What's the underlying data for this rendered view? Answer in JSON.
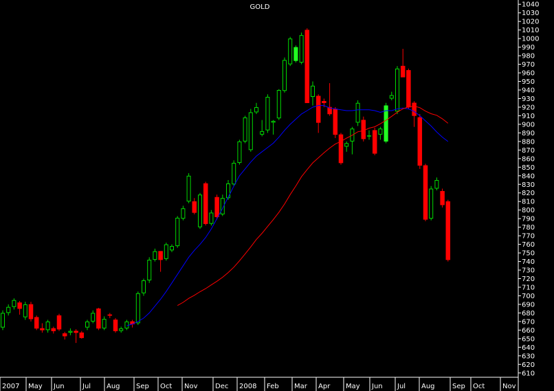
{
  "chart_data": {
    "type": "candlestick",
    "title": "GOLD",
    "xlabel": "",
    "ylabel": "",
    "ylim": [
      605,
      1045
    ],
    "y_ticks": [
      610,
      620,
      630,
      640,
      650,
      660,
      670,
      680,
      690,
      700,
      710,
      720,
      730,
      740,
      750,
      760,
      770,
      780,
      790,
      800,
      810,
      820,
      830,
      840,
      850,
      860,
      870,
      880,
      890,
      900,
      910,
      920,
      930,
      940,
      950,
      960,
      970,
      980,
      990,
      1000,
      1010,
      1020,
      1030,
      1040
    ],
    "x_labels": [
      "2007",
      "May",
      "Jun",
      "Jul",
      "Aug",
      "Sep",
      "Oct",
      "Nov",
      "Dec",
      "2008",
      "Feb",
      "Mar",
      "Apr",
      "May",
      "Jun",
      "Jul",
      "Aug",
      "Sep",
      "Oct",
      "Nov"
    ],
    "grid": false,
    "colors": {
      "background": "#000000",
      "up_candle": "#00dd00",
      "up_candle_highlight": "#22ff22",
      "down_candle": "#ff0000",
      "ma_short": "#0000ff",
      "ma_long": "#ff0000",
      "axis": "#ffffff"
    },
    "candles": [
      {
        "o": 663,
        "h": 683,
        "l": 660,
        "c": 680,
        "dir": "up"
      },
      {
        "o": 680,
        "h": 690,
        "l": 677,
        "c": 687,
        "dir": "up"
      },
      {
        "o": 687,
        "h": 697,
        "l": 684,
        "c": 695,
        "dir": "up"
      },
      {
        "o": 692,
        "h": 694,
        "l": 678,
        "c": 685,
        "dir": "down"
      },
      {
        "o": 675,
        "h": 693,
        "l": 672,
        "c": 690,
        "dir": "up"
      },
      {
        "o": 690,
        "h": 693,
        "l": 670,
        "c": 673,
        "dir": "down"
      },
      {
        "o": 675,
        "h": 677,
        "l": 660,
        "c": 662,
        "dir": "down"
      },
      {
        "o": 662,
        "h": 668,
        "l": 657,
        "c": 660,
        "dir": "down"
      },
      {
        "o": 660,
        "h": 672,
        "l": 657,
        "c": 670,
        "dir": "up"
      },
      {
        "o": 662,
        "h": 664,
        "l": 656,
        "c": 659,
        "dir": "down"
      },
      {
        "o": 677,
        "h": 679,
        "l": 659,
        "c": 661,
        "dir": "down"
      },
      {
        "o": 656,
        "h": 658,
        "l": 649,
        "c": 653,
        "dir": "down"
      },
      {
        "o": 657,
        "h": 662,
        "l": 654,
        "c": 659,
        "dir": "up"
      },
      {
        "o": 659,
        "h": 661,
        "l": 645,
        "c": 657,
        "dir": "down"
      },
      {
        "o": 657,
        "h": 659,
        "l": 650,
        "c": 651,
        "dir": "down"
      },
      {
        "o": 663,
        "h": 672,
        "l": 660,
        "c": 670,
        "dir": "up"
      },
      {
        "o": 670,
        "h": 683,
        "l": 668,
        "c": 680,
        "dir": "up"
      },
      {
        "o": 685,
        "h": 686,
        "l": 660,
        "c": 662,
        "dir": "down"
      },
      {
        "o": 662,
        "h": 676,
        "l": 660,
        "c": 673,
        "dir": "up"
      },
      {
        "o": 678,
        "h": 680,
        "l": 674,
        "c": 677,
        "dir": "down"
      },
      {
        "o": 672,
        "h": 674,
        "l": 657,
        "c": 659,
        "dir": "down"
      },
      {
        "o": 659,
        "h": 664,
        "l": 657,
        "c": 662,
        "dir": "up"
      },
      {
        "o": 662,
        "h": 672,
        "l": 660,
        "c": 670,
        "dir": "up"
      },
      {
        "o": 670,
        "h": 672,
        "l": 663,
        "c": 667,
        "dir": "down"
      },
      {
        "o": 668,
        "h": 705,
        "l": 666,
        "c": 703,
        "dir": "up"
      },
      {
        "o": 703,
        "h": 720,
        "l": 700,
        "c": 718,
        "dir": "up"
      },
      {
        "o": 718,
        "h": 745,
        "l": 715,
        "c": 742,
        "dir": "up"
      },
      {
        "o": 742,
        "h": 755,
        "l": 740,
        "c": 752,
        "dir": "up"
      },
      {
        "o": 752,
        "h": 750,
        "l": 728,
        "c": 742,
        "dir": "down"
      },
      {
        "o": 743,
        "h": 762,
        "l": 741,
        "c": 760,
        "dir": "up"
      },
      {
        "o": 753,
        "h": 760,
        "l": 751,
        "c": 758,
        "dir": "up"
      },
      {
        "o": 758,
        "h": 793,
        "l": 756,
        "c": 791,
        "dir": "up"
      },
      {
        "o": 790,
        "h": 805,
        "l": 788,
        "c": 802,
        "dir": "up"
      },
      {
        "o": 810,
        "h": 843,
        "l": 808,
        "c": 840,
        "dir": "up"
      },
      {
        "o": 810,
        "h": 814,
        "l": 795,
        "c": 797,
        "dir": "down"
      },
      {
        "o": 780,
        "h": 820,
        "l": 778,
        "c": 818,
        "dir": "up"
      },
      {
        "o": 831,
        "h": 833,
        "l": 782,
        "c": 784,
        "dir": "down"
      },
      {
        "o": 784,
        "h": 800,
        "l": 782,
        "c": 797,
        "dir": "up"
      },
      {
        "o": 815,
        "h": 818,
        "l": 789,
        "c": 792,
        "dir": "down"
      },
      {
        "o": 795,
        "h": 818,
        "l": 793,
        "c": 814,
        "dir": "up"
      },
      {
        "o": 814,
        "h": 835,
        "l": 812,
        "c": 831,
        "dir": "up"
      },
      {
        "o": 830,
        "h": 858,
        "l": 828,
        "c": 855,
        "dir": "up"
      },
      {
        "o": 855,
        "h": 882,
        "l": 853,
        "c": 880,
        "dir": "up"
      },
      {
        "o": 880,
        "h": 910,
        "l": 878,
        "c": 908,
        "dir": "up"
      },
      {
        "o": 870,
        "h": 918,
        "l": 868,
        "c": 914,
        "dir": "up"
      },
      {
        "o": 914,
        "h": 925,
        "l": 912,
        "c": 920,
        "dir": "up"
      },
      {
        "o": 888,
        "h": 905,
        "l": 886,
        "c": 892,
        "dir": "up"
      },
      {
        "o": 893,
        "h": 935,
        "l": 890,
        "c": 932,
        "dir": "up"
      },
      {
        "o": 902,
        "h": 905,
        "l": 888,
        "c": 904,
        "dir": "up"
      },
      {
        "o": 907,
        "h": 941,
        "l": 905,
        "c": 940,
        "dir": "up"
      },
      {
        "o": 939,
        "h": 978,
        "l": 937,
        "c": 975,
        "dir": "up"
      },
      {
        "o": 970,
        "h": 1002,
        "l": 968,
        "c": 1000,
        "dir": "up"
      },
      {
        "o": 990,
        "h": 992,
        "l": 972,
        "c": 974,
        "dir": "up"
      },
      {
        "o": 972,
        "h": 1007,
        "l": 970,
        "c": 1004,
        "dir": "up"
      },
      {
        "o": 1010,
        "h": 1012,
        "l": 927,
        "c": 925,
        "dir": "down"
      },
      {
        "o": 932,
        "h": 950,
        "l": 922,
        "c": 945,
        "dir": "up"
      },
      {
        "o": 933,
        "h": 935,
        "l": 890,
        "c": 902,
        "dir": "down"
      },
      {
        "o": 927,
        "h": 930,
        "l": 920,
        "c": 925,
        "dir": "down"
      },
      {
        "o": 912,
        "h": 948,
        "l": 910,
        "c": 920,
        "dir": "down"
      },
      {
        "o": 918,
        "h": 920,
        "l": 884,
        "c": 888,
        "dir": "down"
      },
      {
        "o": 888,
        "h": 890,
        "l": 853,
        "c": 855,
        "dir": "down"
      },
      {
        "o": 874,
        "h": 880,
        "l": 868,
        "c": 878,
        "dir": "up"
      },
      {
        "o": 880,
        "h": 897,
        "l": 865,
        "c": 895,
        "dir": "up"
      },
      {
        "o": 902,
        "h": 928,
        "l": 898,
        "c": 925,
        "dir": "up"
      },
      {
        "o": 905,
        "h": 909,
        "l": 880,
        "c": 883,
        "dir": "down"
      },
      {
        "o": 886,
        "h": 893,
        "l": 882,
        "c": 887,
        "dir": "up"
      },
      {
        "o": 893,
        "h": 896,
        "l": 864,
        "c": 866,
        "dir": "down"
      },
      {
        "o": 888,
        "h": 897,
        "l": 882,
        "c": 895,
        "dir": "up"
      },
      {
        "o": 880,
        "h": 925,
        "l": 878,
        "c": 922,
        "dir": "up"
      },
      {
        "o": 930,
        "h": 938,
        "l": 928,
        "c": 934,
        "dir": "up"
      },
      {
        "o": 915,
        "h": 968,
        "l": 912,
        "c": 965,
        "dir": "up"
      },
      {
        "o": 968,
        "h": 988,
        "l": 955,
        "c": 955,
        "dir": "down"
      },
      {
        "o": 963,
        "h": 965,
        "l": 918,
        "c": 920,
        "dir": "down"
      },
      {
        "o": 925,
        "h": 927,
        "l": 897,
        "c": 910,
        "dir": "down"
      },
      {
        "o": 908,
        "h": 912,
        "l": 848,
        "c": 852,
        "dir": "down"
      },
      {
        "o": 852,
        "h": 854,
        "l": 787,
        "c": 789,
        "dir": "down"
      },
      {
        "o": 790,
        "h": 828,
        "l": 788,
        "c": 825,
        "dir": "up"
      },
      {
        "o": 825,
        "h": 838,
        "l": 823,
        "c": 835,
        "dir": "up"
      },
      {
        "o": 822,
        "h": 825,
        "l": 803,
        "c": 806,
        "dir": "down"
      },
      {
        "o": 810,
        "h": 812,
        "l": 740,
        "c": 742,
        "dir": "down"
      }
    ],
    "series": [
      {
        "values": [
          null,
          null,
          null,
          null,
          null,
          null,
          null,
          null,
          null,
          null,
          null,
          null,
          null,
          null,
          null,
          null,
          null,
          null,
          null,
          null,
          null,
          null,
          665,
          667,
          670,
          674,
          680,
          688,
          696,
          705,
          715,
          725,
          735,
          745,
          753,
          760,
          768,
          778,
          790,
          802,
          815,
          828,
          840,
          848,
          856,
          863,
          868,
          873,
          878,
          885,
          893,
          900,
          906,
          912,
          916,
          920,
          922,
          922,
          919,
          918,
          917,
          916,
          916,
          917,
          917,
          917,
          916,
          914,
          916,
          916,
          918,
          919,
          918,
          915,
          910,
          904,
          898,
          891,
          885,
          880
        ]
      },
      {
        "values": [
          null,
          null,
          null,
          null,
          null,
          null,
          null,
          null,
          null,
          null,
          null,
          null,
          null,
          null,
          null,
          null,
          null,
          null,
          null,
          null,
          null,
          null,
          null,
          null,
          null,
          null,
          null,
          null,
          null,
          null,
          null,
          null,
          null,
          null,
          null,
          null,
          null,
          null,
          null,
          null,
          null,
          null,
          null,
          null,
          null,
          null,
          null,
          null,
          null,
          null,
          null,
          null,
          null,
          null,
          null,
          null,
          null,
          null,
          null,
          null,
          null,
          null,
          null,
          null,
          null,
          null,
          null,
          null,
          null,
          null,
          null,
          null,
          null,
          null,
          null,
          null,
          null,
          null,
          null,
          null
        ]
      }
    ]
  }
}
